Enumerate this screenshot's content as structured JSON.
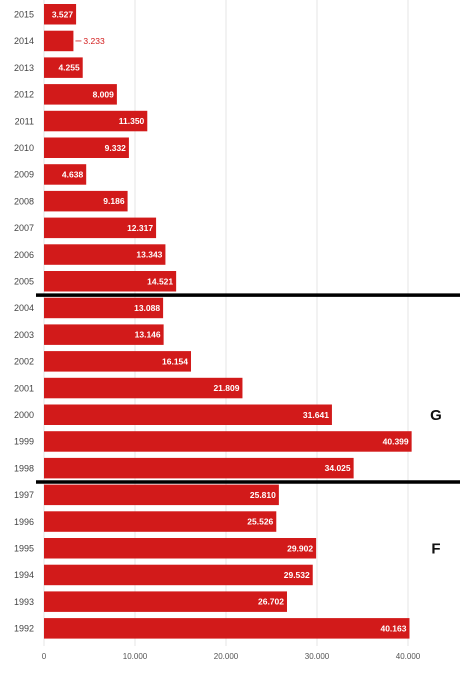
{
  "chart_data": {
    "type": "bar",
    "orientation": "horizontal",
    "categories": [
      "2015",
      "2014",
      "2013",
      "2012",
      "2011",
      "2010",
      "2009",
      "2008",
      "2007",
      "2006",
      "2005",
      "2004",
      "2003",
      "2002",
      "2001",
      "2000",
      "1999",
      "1998",
      "1997",
      "1996",
      "1995",
      "1994",
      "1993",
      "1992"
    ],
    "values": [
      3527,
      3233,
      4255,
      8009,
      11350,
      9332,
      4638,
      9186,
      12317,
      13343,
      14521,
      13088,
      13146,
      16154,
      21809,
      31641,
      40399,
      34025,
      25810,
      25526,
      29902,
      29532,
      26702,
      40163
    ],
    "value_labels": [
      "3.527",
      "3.233",
      "4.255",
      "8.009",
      "11.350",
      "9.332",
      "4.638",
      "9.186",
      "12.317",
      "13.343",
      "14.521",
      "13.088",
      "13.146",
      "16.154",
      "21.809",
      "31.641",
      "40.399",
      "34.025",
      "25.810",
      "25.526",
      "29.902",
      "29.532",
      "26.702",
      "40.163"
    ],
    "xlim": [
      0,
      40000
    ],
    "x_ticks": [
      0,
      10000,
      20000,
      30000,
      40000
    ],
    "x_tick_labels": [
      "0",
      "10.000",
      "20.000",
      "30.000",
      "40.000"
    ],
    "grid": "vertical",
    "bar_color": "#d21a1a",
    "separators_after_category": [
      "2005",
      "1998"
    ],
    "region_labels": [
      {
        "text": "G",
        "category": "2000"
      },
      {
        "text": "F",
        "category": "1995"
      }
    ],
    "title": "",
    "xlabel": "",
    "ylabel": ""
  }
}
